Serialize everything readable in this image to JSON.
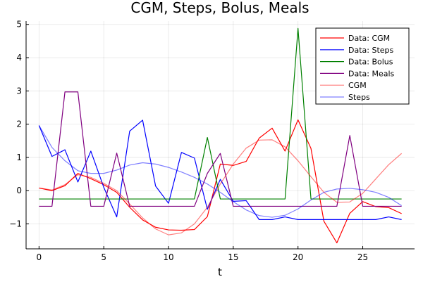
{
  "chart_data": {
    "type": "line",
    "title": "CGM, Steps, Bolus, Meals",
    "xlabel": "t",
    "ylabel": "",
    "xlim": [
      -1,
      29
    ],
    "ylim": [
      -1.75,
      5.1
    ],
    "xticks": [
      0,
      5,
      10,
      15,
      20,
      25
    ],
    "yticks": [
      -1,
      0,
      1,
      2,
      3,
      4,
      5
    ],
    "grid": true,
    "legend_position": "top-right",
    "x": [
      0,
      1,
      2,
      3,
      4,
      5,
      6,
      7,
      8,
      9,
      10,
      11,
      12,
      13,
      14,
      15,
      16,
      17,
      18,
      19,
      20,
      21,
      22,
      23,
      24,
      25,
      26,
      27,
      28
    ],
    "series": [
      {
        "name": "Data: CGM",
        "color": "#ff0000",
        "opacity": 1,
        "values": [
          0.08,
          0.0,
          0.15,
          0.52,
          0.36,
          0.18,
          -0.05,
          -0.5,
          -0.88,
          -1.1,
          -1.18,
          -1.19,
          -1.17,
          -0.78,
          0.8,
          0.76,
          0.88,
          1.58,
          1.88,
          1.19,
          2.13,
          1.27,
          -0.92,
          -1.57,
          -0.68,
          -0.33,
          -0.48,
          -0.51,
          -0.69
        ]
      },
      {
        "name": "Data: Steps",
        "color": "#0000ff",
        "opacity": 1,
        "values": [
          1.96,
          1.03,
          1.23,
          0.26,
          1.19,
          0.1,
          -0.79,
          1.79,
          2.12,
          0.14,
          -0.38,
          1.15,
          0.98,
          -0.56,
          0.34,
          -0.32,
          -0.3,
          -0.87,
          -0.87,
          -0.79,
          -0.87,
          -0.87,
          -0.87,
          -0.87,
          -0.87,
          -0.87,
          -0.87,
          -0.79,
          -0.87
        ]
      },
      {
        "name": "Data: Bolus",
        "color": "#008000",
        "opacity": 1,
        "values": [
          -0.25,
          -0.25,
          -0.25,
          -0.25,
          -0.25,
          -0.25,
          -0.25,
          -0.25,
          -0.25,
          -0.25,
          -0.25,
          -0.25,
          -0.25,
          1.6,
          -0.25,
          -0.25,
          -0.25,
          -0.25,
          -0.25,
          -0.25,
          4.88,
          -0.25,
          -0.25,
          -0.25,
          -0.25,
          -0.25,
          -0.25,
          -0.25,
          -0.25
        ]
      },
      {
        "name": "Data: Meals",
        "color": "#800080",
        "opacity": 1,
        "values": [
          -0.47,
          -0.47,
          2.97,
          2.97,
          -0.47,
          -0.47,
          1.13,
          -0.47,
          -0.47,
          -0.47,
          -0.47,
          -0.47,
          -0.47,
          0.52,
          1.12,
          -0.47,
          -0.47,
          -0.47,
          -0.47,
          -0.47,
          -0.47,
          -0.47,
          -0.47,
          -0.47,
          1.66,
          -0.47,
          -0.47,
          -0.47,
          -0.47
        ]
      },
      {
        "name": "CGM",
        "color": "#ff0000",
        "opacity": 0.5,
        "values": [
          0.08,
          0.02,
          0.18,
          0.48,
          0.4,
          0.22,
          0.0,
          -0.4,
          -0.82,
          -1.15,
          -1.33,
          -1.27,
          -1.0,
          -0.5,
          0.2,
          0.8,
          1.28,
          1.52,
          1.53,
          1.32,
          0.9,
          0.42,
          -0.05,
          -0.35,
          -0.34,
          -0.08,
          0.35,
          0.78,
          1.12
        ]
      },
      {
        "name": "Steps",
        "color": "#0000ff",
        "opacity": 0.5,
        "values": [
          1.96,
          1.3,
          0.9,
          0.6,
          0.52,
          0.52,
          0.62,
          0.77,
          0.84,
          0.8,
          0.7,
          0.56,
          0.4,
          0.2,
          -0.05,
          -0.33,
          -0.58,
          -0.75,
          -0.8,
          -0.74,
          -0.55,
          -0.28,
          -0.05,
          0.05,
          0.07,
          0.03,
          -0.05,
          -0.2,
          -0.45
        ]
      }
    ]
  }
}
